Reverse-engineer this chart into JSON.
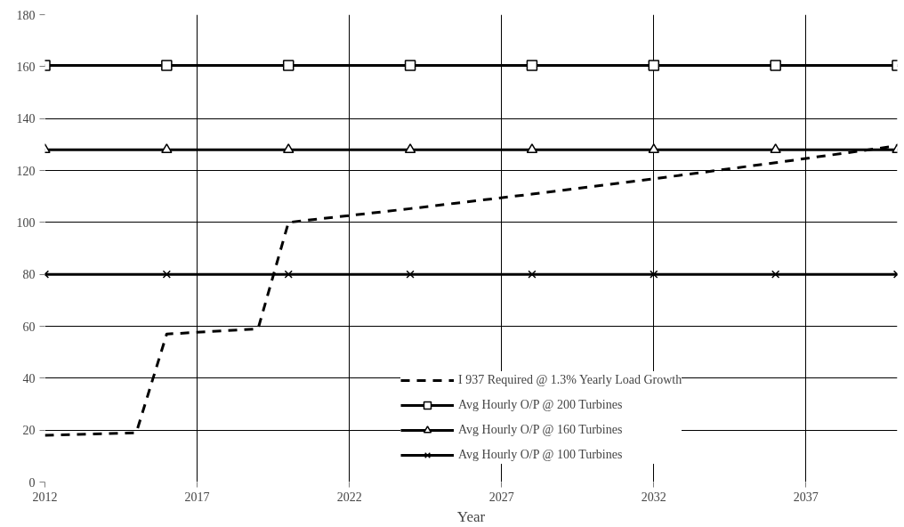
{
  "chart_data": {
    "type": "line",
    "xlabel": "Year",
    "xlim": [
      2012,
      2040
    ],
    "xticks": [
      2012,
      2017,
      2022,
      2027,
      2032,
      2037
    ],
    "ylim": [
      0,
      180
    ],
    "yticks": [
      0,
      20,
      40,
      60,
      80,
      100,
      120,
      140,
      160,
      180
    ],
    "grid": true,
    "legend": "bottom",
    "series": [
      {
        "name": "I 937 Required @ 1.3% Yearly Load Growth",
        "color": "#000000",
        "line_style": "dashed",
        "marker": "none",
        "x": [
          2012,
          2015,
          2016,
          2019,
          2020,
          2024,
          2028,
          2032,
          2036,
          2040
        ],
        "values": [
          18,
          19,
          57,
          59,
          100,
          105.3,
          110.9,
          116.8,
          123,
          129.5
        ]
      },
      {
        "name": "Avg Hourly O/P @ 200 Turbines",
        "color": "#000000",
        "line_style": "solid",
        "marker": "square",
        "x": [
          2012,
          2016,
          2020,
          2024,
          2028,
          2032,
          2036,
          2040
        ],
        "values": [
          160.5,
          160.5,
          160.5,
          160.5,
          160.5,
          160.5,
          160.5,
          160.5
        ]
      },
      {
        "name": "Avg Hourly O/P @ 160 Turbines",
        "color": "#000000",
        "line_style": "solid",
        "marker": "triangle",
        "x": [
          2012,
          2016,
          2020,
          2024,
          2028,
          2032,
          2036,
          2040
        ],
        "values": [
          128,
          128,
          128,
          128,
          128,
          128,
          128,
          128
        ]
      },
      {
        "name": "Avg Hourly O/P @ 100 Turbines",
        "color": "#000000",
        "line_style": "solid",
        "marker": "cross",
        "x": [
          2012,
          2016,
          2020,
          2024,
          2028,
          2032,
          2036,
          2040
        ],
        "values": [
          80,
          80,
          80,
          80,
          80,
          80,
          80,
          80
        ]
      }
    ]
  }
}
